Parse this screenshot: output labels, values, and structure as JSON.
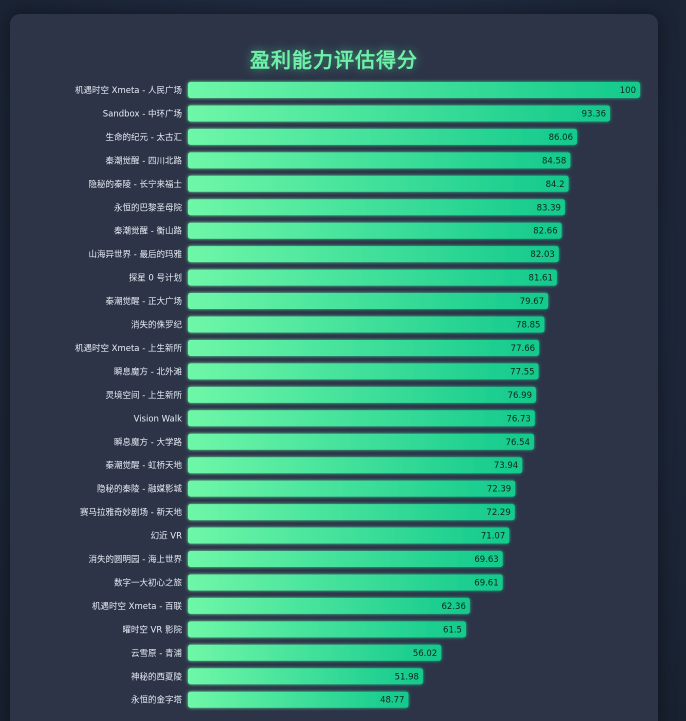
{
  "chart_data": {
    "type": "bar",
    "orientation": "horizontal",
    "title": "盈利能力评估得分",
    "xlabel": "",
    "ylabel": "",
    "xlim": [
      0,
      100
    ],
    "grid": false,
    "legend": "none",
    "colors": {
      "bar_start": "#6ff7a8",
      "bar_end": "#12c98c",
      "title": "#6ef0a8"
    },
    "categories": [
      "机遇时空 Xmeta - 人民广场",
      "Sandbox - 中环广场",
      "生命的纪元 - 太古汇",
      "秦潮觉醒 - 四川北路",
      "隐秘的秦陵 - 长宁来福士",
      "永恒的巴黎圣母院",
      "秦潮觉醒 - 衡山路",
      "山海异世界 - 最后的玛雅",
      "探星 0 号计划",
      "秦潮觉醒 - 正大广场",
      "消失的侏罗纪",
      "机遇时空 Xmeta - 上生新所",
      "瞬息魔方 - 北外滩",
      "灵境空间 - 上生新所",
      "Vision Walk",
      "瞬息魔方 - 大学路",
      "秦潮觉醒 - 虹桥天地",
      "隐秘的秦陵 - 融媒影城",
      "赛马拉雅奇妙剧场 - 新天地",
      "幻近 VR",
      "消失的圆明园 - 海上世界",
      "数字一大初心之旅",
      "机遇时空 Xmeta - 百联",
      "曜时空 VR 影院",
      "云雪原 - 青浦",
      "神秘的西夏陵",
      "永恒的金字塔"
    ],
    "values": [
      100,
      93.36,
      86.06,
      84.58,
      84.2,
      83.39,
      82.66,
      82.03,
      81.61,
      79.67,
      78.85,
      77.66,
      77.55,
      76.99,
      76.73,
      76.54,
      73.94,
      72.39,
      72.29,
      71.07,
      69.63,
      69.61,
      62.36,
      61.5,
      56.02,
      51.98,
      48.77
    ]
  }
}
